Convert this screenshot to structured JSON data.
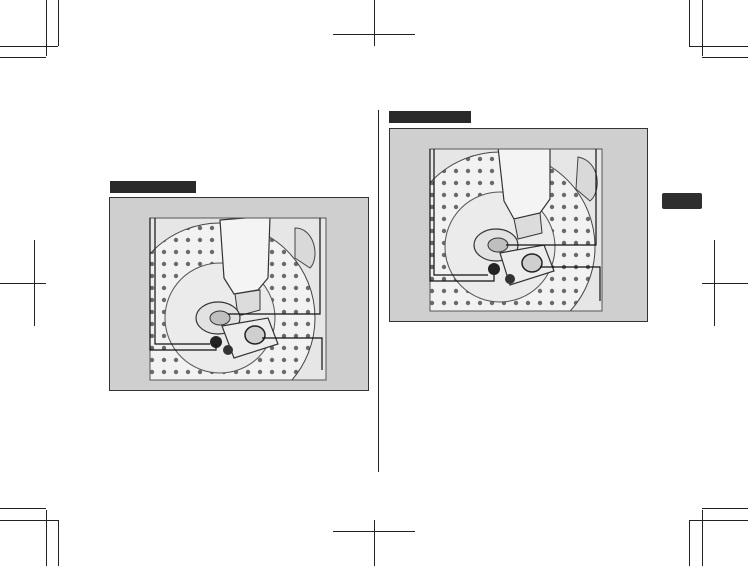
{
  "page": {
    "figures": [
      {
        "id": "figure-left",
        "caption": ""
      },
      {
        "id": "figure-right",
        "caption": ""
      }
    ],
    "section_tab": {
      "text": ""
    }
  }
}
